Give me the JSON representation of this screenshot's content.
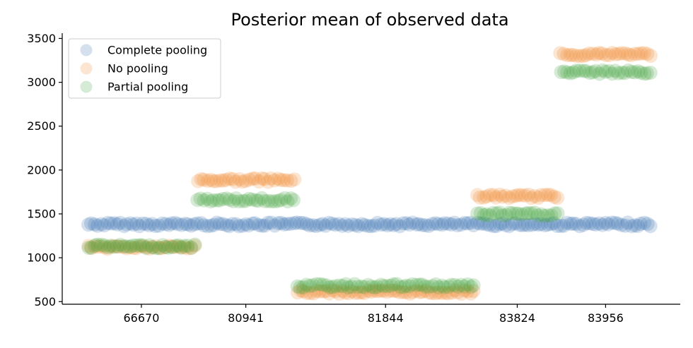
{
  "chart_data": {
    "type": "scatter",
    "title": "Posterior mean of observed data",
    "xlabel": "",
    "ylabel": "",
    "categories": [
      "66670",
      "80941",
      "81844",
      "83824",
      "83956"
    ],
    "yticks": [
      500,
      1000,
      1500,
      2000,
      2500,
      3000,
      3500
    ],
    "ylim": [
      470,
      3560
    ],
    "grid": false,
    "legend_position": "top-left",
    "group_ranges": [
      {
        "category": "66670",
        "start": 0,
        "end": 33
      },
      {
        "category": "80941",
        "start": 34,
        "end": 64
      },
      {
        "category": "81844",
        "start": 65,
        "end": 120
      },
      {
        "category": "83824",
        "start": 121,
        "end": 146
      },
      {
        "category": "83956",
        "start": 147,
        "end": 175
      }
    ],
    "observation_count": 176,
    "series": [
      {
        "name": "Complete pooling",
        "color": "#3a72b3",
        "group_values": [
          1380,
          1380,
          1380,
          1380,
          1380
        ]
      },
      {
        "name": "No pooling",
        "color": "#f0882f",
        "group_values": [
          1120,
          1885,
          610,
          1700,
          3320
        ]
      },
      {
        "name": "Partial pooling",
        "color": "#45a33e",
        "group_values": [
          1130,
          1660,
          680,
          1495,
          3115
        ]
      }
    ]
  }
}
